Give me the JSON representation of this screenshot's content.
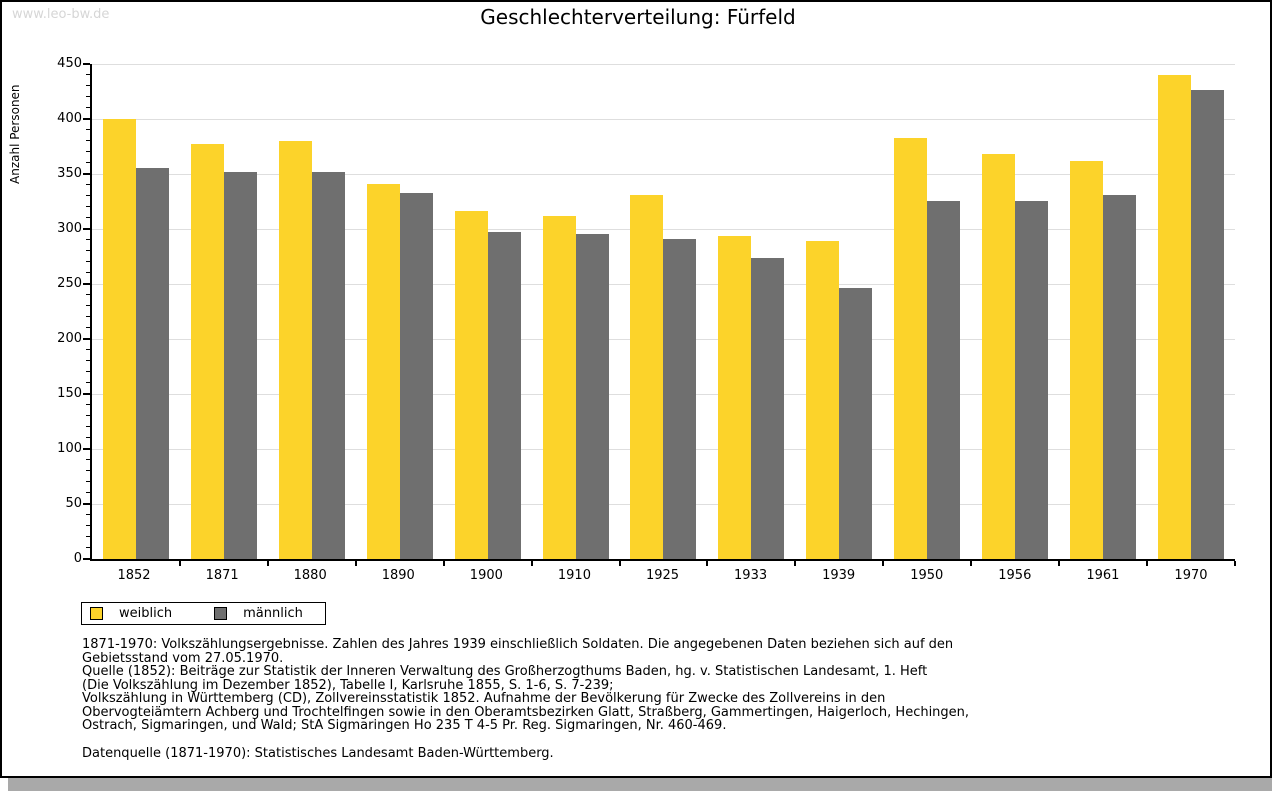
{
  "watermark": "www.leo-bw.de",
  "title": "Geschlechterverteilung: Fürfeld",
  "chart_data": {
    "type": "bar",
    "title": "Geschlechterverteilung: Fürfeld",
    "xlabel": "",
    "ylabel": "Anzahl Personen",
    "ylim": [
      0,
      450
    ],
    "ytick_major": 50,
    "ytick_minor": 10,
    "grid": true,
    "legend_position": "bottom-left",
    "categories": [
      "1852",
      "1871",
      "1880",
      "1890",
      "1900",
      "1910",
      "1925",
      "1933",
      "1939",
      "1950",
      "1956",
      "1961",
      "1970"
    ],
    "series": [
      {
        "name": "weiblich",
        "color": "#fcd32a",
        "values": [
          400,
          377,
          380,
          341,
          316,
          312,
          331,
          294,
          289,
          383,
          368,
          362,
          440
        ]
      },
      {
        "name": "männlich",
        "color": "#6f6f6f",
        "values": [
          355,
          352,
          352,
          333,
          297,
          295,
          291,
          274,
          246,
          325,
          325,
          331,
          426
        ]
      }
    ]
  },
  "legend": {
    "items": [
      {
        "label": "weiblich",
        "color": "#fcd32a"
      },
      {
        "label": "männlich",
        "color": "#6f6f6f"
      }
    ]
  },
  "footer": {
    "lines": [
      "1871-1970: Volkszählungsergebnisse. Zahlen des Jahres 1939 einschließlich Soldaten. Die angegebenen Daten beziehen sich auf den",
      "Gebietsstand vom 27.05.1970.",
      "Quelle (1852): Beiträge zur Statistik der Inneren Verwaltung des Großherzogthums Baden, hg. v. Statistischen Landesamt, 1. Heft",
      "(Die Volkszählung im Dezember 1852), Tabelle I, Karlsruhe 1855, S. 1-6, S. 7-239;",
      "Volkszählung in Württemberg (CD), Zollvereinsstatistik 1852. Aufnahme der Bevölkerung für Zwecke des Zollvereins in den",
      "Obervogteiämtern Achberg und Trochtelfingen sowie in den Oberamtsbezirken Glatt, Straßberg, Gammertingen, Haigerloch, Hechingen,",
      "Ostrach, Sigmaringen, und Wald; StA Sigmaringen Ho 235 T 4-5 Pr. Reg. Sigmaringen, Nr. 460-469."
    ],
    "datasource": "Datenquelle (1871-1970): Statistisches Landesamt Baden-Württemberg."
  }
}
